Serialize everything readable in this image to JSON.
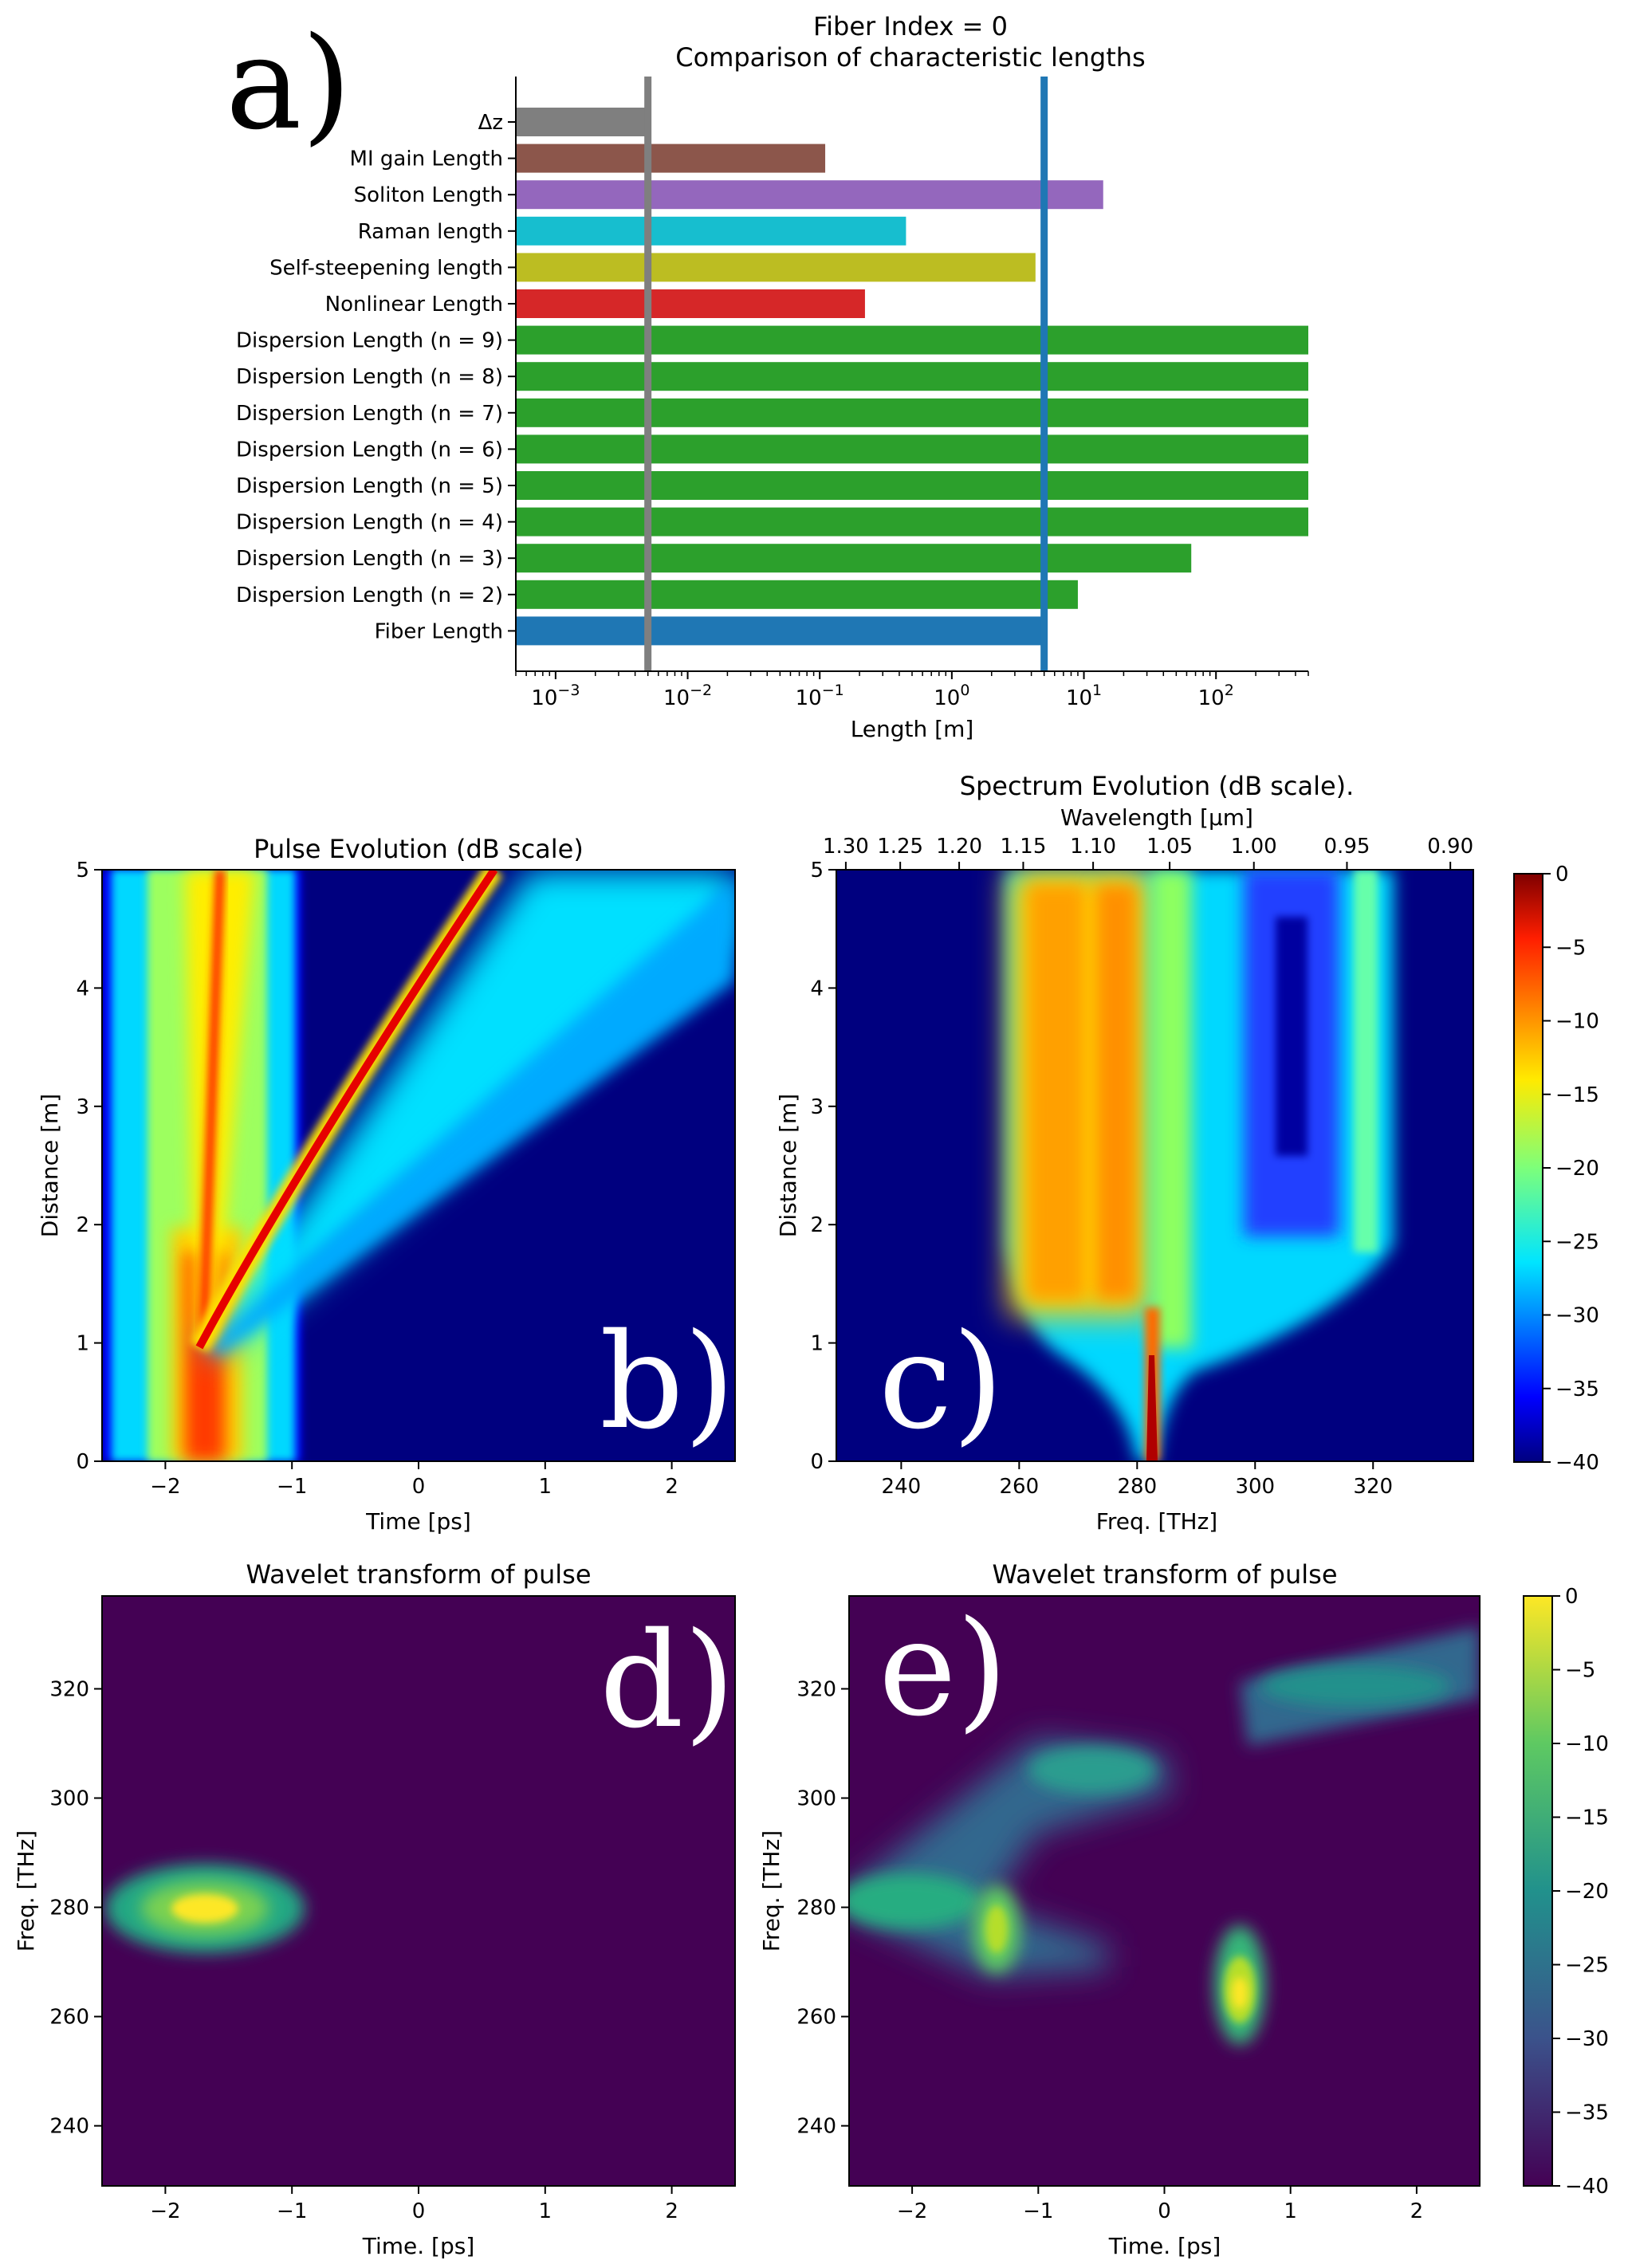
{
  "panel_letters": {
    "a": "a)",
    "b": "b)",
    "c": "c)",
    "d": "d)",
    "e": "e)"
  },
  "chart_data": [
    {
      "id": "a",
      "type": "bar",
      "orientation": "horizontal",
      "title": "Fiber Index = 0",
      "subtitle": "Comparison of characteristic lengths",
      "xlabel": "Length [m]",
      "xscale": "log",
      "xlim": [
        0.0005,
        500
      ],
      "xticks": [
        {
          "value": 0.001,
          "base": "10",
          "exp": "−3"
        },
        {
          "value": 0.01,
          "base": "10",
          "exp": "−2"
        },
        {
          "value": 0.1,
          "base": "10",
          "exp": "−1"
        },
        {
          "value": 1,
          "base": "10",
          "exp": "0"
        },
        {
          "value": 10,
          "base": "10",
          "exp": "1"
        },
        {
          "value": 100,
          "base": "10",
          "exp": "2"
        }
      ],
      "categories": [
        "Δz",
        "MI gain Length",
        "Soliton Length",
        "Raman length",
        "Self-steepening length",
        "Nonlinear Length",
        "Dispersion Length (n = 9)",
        "Dispersion Length (n = 8)",
        "Dispersion Length (n = 7)",
        "Dispersion Length (n = 6)",
        "Dispersion Length (n = 5)",
        "Dispersion Length (n = 4)",
        "Dispersion Length (n = 3)",
        "Dispersion Length (n = 2)",
        "Fiber Length"
      ],
      "values": [
        0.005,
        0.11,
        14,
        0.45,
        4.3,
        0.22,
        500,
        500,
        500,
        500,
        500,
        500,
        65,
        9,
        5
      ],
      "colors": [
        "#7f7f7f",
        "#8c564b",
        "#9467bd",
        "#17becf",
        "#bcbd22",
        "#d62728",
        "#2ca02c",
        "#2ca02c",
        "#2ca02c",
        "#2ca02c",
        "#2ca02c",
        "#2ca02c",
        "#2ca02c",
        "#2ca02c",
        "#1f77b4"
      ],
      "vlines": [
        {
          "value": 0.005,
          "color": "#7f7f7f"
        },
        {
          "value": 5,
          "color": "#1f77b4"
        }
      ]
    },
    {
      "id": "b",
      "type": "heatmap",
      "title": "Pulse Evolution (dB scale)",
      "xlabel": "Time [ps]",
      "ylabel": "Distance [m]",
      "xlim": [
        -2.5,
        2.5
      ],
      "ylim": [
        0,
        5
      ],
      "xticks": [
        {
          "value": -2,
          "label": "−2"
        },
        {
          "value": -1,
          "label": "−1"
        },
        {
          "value": 0,
          "label": "0"
        },
        {
          "value": 1,
          "label": "1"
        },
        {
          "value": 2,
          "label": "2"
        }
      ],
      "yticks": [
        {
          "value": 0,
          "label": "0"
        },
        {
          "value": 1,
          "label": "1"
        },
        {
          "value": 2,
          "label": "2"
        },
        {
          "value": 3,
          "label": "3"
        },
        {
          "value": 4,
          "label": "4"
        },
        {
          "value": 5,
          "label": "5"
        }
      ],
      "colormap": "jet",
      "clim": [
        -40,
        0
      ],
      "features": [
        {
          "name": "input pulse",
          "t_center": -1.8,
          "width_ps": 0.45,
          "z_range": [
            0,
            1
          ]
        },
        {
          "name": "soliton",
          "t_at_z1": -1.7,
          "t_at_z5": 0.5
        }
      ]
    },
    {
      "id": "c",
      "type": "heatmap",
      "title": "Spectrum Evolution (dB scale).",
      "xlabel": "Freq. [THz]",
      "ylabel": "Distance [m]",
      "top_xlabel": "Wavelength [μm]",
      "xlim": [
        229,
        337
      ],
      "ylim": [
        0,
        5
      ],
      "xticks": [
        {
          "value": 240,
          "label": "240"
        },
        {
          "value": 260,
          "label": "260"
        },
        {
          "value": 280,
          "label": "280"
        },
        {
          "value": 300,
          "label": "300"
        },
        {
          "value": 320,
          "label": "320"
        }
      ],
      "yticks": [
        {
          "value": 0,
          "label": "0"
        },
        {
          "value": 1,
          "label": "1"
        },
        {
          "value": 2,
          "label": "2"
        },
        {
          "value": 3,
          "label": "3"
        },
        {
          "value": 4,
          "label": "4"
        },
        {
          "value": 5,
          "label": "5"
        }
      ],
      "top_ticks": [
        {
          "wl": 1.3,
          "label": "1.30"
        },
        {
          "wl": 1.25,
          "label": "1.25"
        },
        {
          "wl": 1.2,
          "label": "1.20"
        },
        {
          "wl": 1.15,
          "label": "1.15"
        },
        {
          "wl": 1.1,
          "label": "1.10"
        },
        {
          "wl": 1.05,
          "label": "1.05"
        },
        {
          "wl": 1.0,
          "label": "1.00"
        },
        {
          "wl": 0.95,
          "label": "0.95"
        },
        {
          "wl": 0.9,
          "label": "0.90"
        }
      ],
      "colormap": "jet",
      "clim": [
        -40,
        0
      ],
      "colorbar_ticks": [
        {
          "value": 0,
          "label": "0"
        },
        {
          "value": -5,
          "label": "−5"
        },
        {
          "value": -10,
          "label": "−10"
        },
        {
          "value": -15,
          "label": "−15"
        },
        {
          "value": -20,
          "label": "−20"
        },
        {
          "value": -25,
          "label": "−25"
        },
        {
          "value": -30,
          "label": "−30"
        },
        {
          "value": -35,
          "label": "−35"
        },
        {
          "value": -40,
          "label": "−40"
        }
      ],
      "features": [
        {
          "name": "input spectrum",
          "f_center": 282,
          "z_range": [
            0,
            1
          ]
        },
        {
          "name": "broadened spectrum",
          "f_range": [
            258,
            323
          ],
          "z_range": [
            1.2,
            5
          ]
        }
      ]
    },
    {
      "id": "d",
      "type": "heatmap",
      "title": "Wavelet transform of pulse",
      "xlabel": "Time. [ps]",
      "ylabel": "Freq. [THz]",
      "xlim": [
        -2.5,
        2.5
      ],
      "ylim": [
        229,
        337
      ],
      "xticks": [
        {
          "value": -2,
          "label": "−2"
        },
        {
          "value": -1,
          "label": "−1"
        },
        {
          "value": 0,
          "label": "0"
        },
        {
          "value": 1,
          "label": "1"
        },
        {
          "value": 2,
          "label": "2"
        }
      ],
      "yticks": [
        {
          "value": 240,
          "label": "240",
          "color": "#e8141b"
        },
        {
          "value": 260,
          "label": "260",
          "color": "#c8453f"
        },
        {
          "value": 280,
          "label": "280",
          "color": "#8a8a8a"
        },
        {
          "value": 300,
          "label": "300",
          "color": "#4a4ab8"
        },
        {
          "value": 320,
          "label": "320",
          "color": "#1e1ed2"
        }
      ],
      "colormap": "viridis",
      "clim": [
        -40,
        0
      ],
      "blobs": [
        {
          "t": -1.75,
          "f": 283,
          "peak_db": 0
        }
      ]
    },
    {
      "id": "e",
      "type": "heatmap",
      "title": "Wavelet transform of pulse",
      "xlabel": "Time. [ps]",
      "ylabel": "Freq. [THz]",
      "xlim": [
        -2.5,
        2.5
      ],
      "ylim": [
        229,
        337
      ],
      "xticks": [
        {
          "value": -2,
          "label": "−2"
        },
        {
          "value": -1,
          "label": "−1"
        },
        {
          "value": 0,
          "label": "0"
        },
        {
          "value": 1,
          "label": "1"
        },
        {
          "value": 2,
          "label": "2"
        }
      ],
      "yticks": [
        {
          "value": 240,
          "label": "240",
          "color": "#e8141b"
        },
        {
          "value": 260,
          "label": "260",
          "color": "#c8453f"
        },
        {
          "value": 280,
          "label": "280",
          "color": "#8a8a8a"
        },
        {
          "value": 300,
          "label": "300",
          "color": "#4a4ab8"
        },
        {
          "value": 320,
          "label": "320",
          "color": "#1e1ed2"
        }
      ],
      "colormap": "viridis",
      "clim": [
        -40,
        0
      ],
      "colorbar_ticks": [
        {
          "value": 0,
          "label": "0"
        },
        {
          "value": -5,
          "label": "−5"
        },
        {
          "value": -10,
          "label": "−10"
        },
        {
          "value": -15,
          "label": "−15"
        },
        {
          "value": -20,
          "label": "−20"
        },
        {
          "value": -25,
          "label": "−25"
        },
        {
          "value": -30,
          "label": "−30"
        },
        {
          "value": -35,
          "label": "−35"
        },
        {
          "value": -40,
          "label": "−40"
        }
      ],
      "blobs": [
        {
          "t": 0.6,
          "f": 265,
          "peak_db": -3
        },
        {
          "t": -1.3,
          "f": 276,
          "peak_db": -12
        },
        {
          "t": -1.8,
          "f": 283,
          "peak_db": -15
        },
        {
          "t": -1.5,
          "f": 292,
          "peak_db": -22
        },
        {
          "t": -0.5,
          "f": 308,
          "peak_db": -22
        },
        {
          "t": 1.4,
          "f": 318,
          "peak_db": -22
        }
      ]
    }
  ]
}
